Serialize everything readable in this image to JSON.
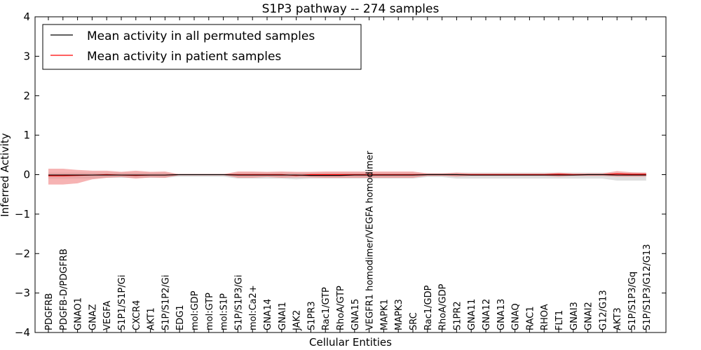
{
  "chart_data": {
    "type": "line",
    "title": "S1P3 pathway -- 274 samples",
    "xlabel": "Cellular Entities",
    "ylabel": "Inferred Activity",
    "ylim": [
      -4,
      4
    ],
    "yticks": [
      -4,
      -3,
      -2,
      -1,
      0,
      1,
      2,
      3,
      4
    ],
    "ytick_labels": [
      "−4",
      "−3",
      "−2",
      "−1",
      "0",
      "1",
      "2",
      "3",
      "4"
    ],
    "legend_position": "top-left",
    "categories": [
      "PDGFRB",
      "PDGFB-D/PDGFRB",
      "GNAO1",
      "GNAZ",
      "VEGFA",
      "S1P1/S1P/Gi",
      "CXCR4",
      "AKT1",
      "S1P/S1P2/Gi",
      "EDG1",
      "mol:GDP",
      "mol:GTP",
      "mol:S1P",
      "S1P/S1P3/Gi",
      "mol:Ca2+",
      "GNA14",
      "GNAI1",
      "JAK2",
      "S1PR3",
      "Rac1/GTP",
      "RhoA/GTP",
      "GNA15",
      "VEGFR1 homodimer/VEGFA homodimer",
      "MAPK1",
      "MAPK3",
      "SRC",
      "Rac1/GDP",
      "RhoA/GDP",
      "S1PR2",
      "GNA11",
      "GNA12",
      "GNA13",
      "GNAQ",
      "RAC1",
      "RHOA",
      "FLT1",
      "GNAI3",
      "GNAI2",
      "G12/G13",
      "AKT3",
      "S1P/S1P3/Gq",
      "S1P/S1P3/G12/G13"
    ],
    "series": [
      {
        "name": "Mean activity in all permuted samples",
        "color": "#000000",
        "values": [
          -0.01,
          -0.01,
          -0.01,
          -0.01,
          -0.01,
          -0.01,
          -0.01,
          -0.01,
          -0.01,
          0.0,
          0.0,
          0.0,
          0.0,
          -0.01,
          -0.01,
          -0.01,
          -0.01,
          -0.01,
          -0.02,
          -0.02,
          -0.02,
          -0.01,
          -0.01,
          -0.01,
          -0.01,
          -0.01,
          0.0,
          0.0,
          0.0,
          -0.01,
          -0.01,
          -0.01,
          -0.01,
          -0.01,
          -0.01,
          -0.01,
          -0.01,
          0.0,
          0.0,
          -0.01,
          -0.01,
          -0.01
        ],
        "band_upper": [
          0.05,
          0.05,
          0.05,
          0.05,
          0.05,
          0.05,
          0.05,
          0.05,
          0.05,
          0.01,
          0.01,
          0.01,
          0.01,
          0.05,
          0.05,
          0.05,
          0.05,
          0.05,
          0.05,
          0.05,
          0.05,
          0.05,
          0.05,
          0.05,
          0.05,
          0.05,
          0.04,
          0.04,
          0.05,
          0.05,
          0.05,
          0.05,
          0.05,
          0.05,
          0.05,
          0.05,
          0.05,
          0.05,
          0.05,
          0.05,
          0.05,
          0.05
        ],
        "band_lower": [
          -0.1,
          -0.1,
          -0.1,
          -0.1,
          -0.08,
          -0.08,
          -0.08,
          -0.08,
          -0.08,
          -0.05,
          -0.05,
          -0.05,
          -0.05,
          -0.1,
          -0.1,
          -0.1,
          -0.1,
          -0.12,
          -0.1,
          -0.1,
          -0.1,
          -0.1,
          -0.1,
          -0.1,
          -0.1,
          -0.1,
          -0.06,
          -0.06,
          -0.1,
          -0.1,
          -0.1,
          -0.1,
          -0.1,
          -0.1,
          -0.1,
          -0.1,
          -0.1,
          -0.1,
          -0.1,
          -0.15,
          -0.15,
          -0.15
        ]
      },
      {
        "name": "Mean activity in patient samples",
        "color": "#ff0000",
        "band_color": "#f08080",
        "values": [
          -0.03,
          -0.03,
          -0.02,
          -0.01,
          0.0,
          -0.01,
          -0.02,
          -0.01,
          -0.01,
          0.0,
          0.0,
          0.0,
          0.0,
          0.0,
          0.0,
          0.0,
          0.0,
          -0.02,
          0.0,
          0.0,
          0.0,
          0.0,
          0.0,
          0.0,
          0.0,
          0.0,
          0.0,
          0.0,
          0.0,
          0.0,
          0.0,
          0.0,
          0.0,
          0.0,
          0.0,
          0.01,
          0.0,
          0.0,
          0.0,
          0.02,
          0.01,
          0.01
        ],
        "band_upper": [
          0.15,
          0.15,
          0.12,
          0.1,
          0.1,
          0.07,
          0.1,
          0.07,
          0.08,
          0.01,
          0.01,
          0.01,
          0.01,
          0.08,
          0.08,
          0.07,
          0.08,
          0.07,
          0.07,
          0.08,
          0.08,
          0.08,
          0.08,
          0.08,
          0.08,
          0.08,
          0.03,
          0.03,
          0.05,
          0.03,
          0.03,
          0.03,
          0.03,
          0.03,
          0.03,
          0.05,
          0.03,
          0.03,
          0.03,
          0.09,
          0.06,
          0.05
        ],
        "band_lower": [
          -0.25,
          -0.25,
          -0.22,
          -0.12,
          -0.08,
          -0.06,
          -0.1,
          -0.07,
          -0.08,
          -0.01,
          -0.01,
          -0.01,
          -0.01,
          -0.08,
          -0.08,
          -0.06,
          -0.08,
          -0.07,
          -0.07,
          -0.08,
          -0.08,
          -0.08,
          -0.08,
          -0.08,
          -0.08,
          -0.08,
          -0.03,
          -0.03,
          -0.05,
          -0.03,
          -0.03,
          -0.03,
          -0.03,
          -0.03,
          -0.03,
          -0.05,
          -0.03,
          -0.03,
          -0.03,
          -0.05,
          -0.05,
          -0.05
        ]
      }
    ]
  }
}
